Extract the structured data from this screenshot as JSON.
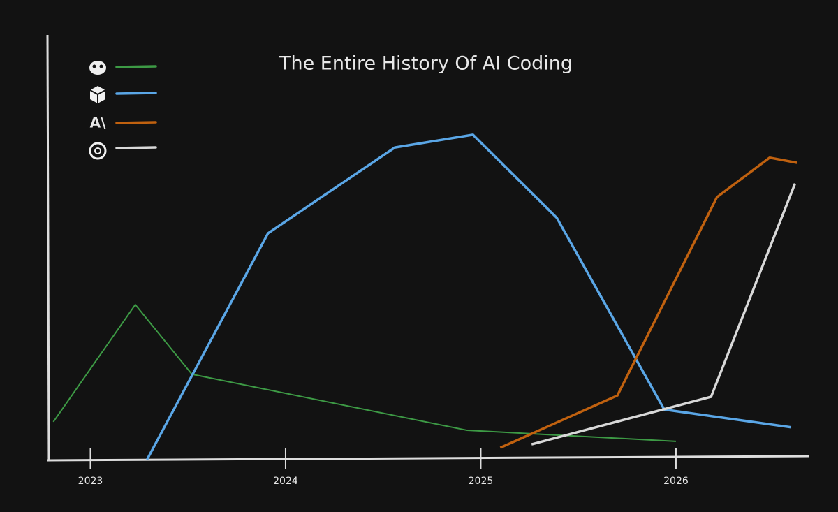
{
  "chart_data": {
    "type": "line",
    "title": "The Entire History Of AI Coding",
    "xlim": [
      2022.78,
      2026.68
    ],
    "xticks": [
      2023,
      2024,
      2025,
      2026
    ],
    "ylim": [
      0,
      100
    ],
    "series": [
      {
        "color": "#3d9a45",
        "x": [
          2022.81,
          2023.23,
          2023.52,
          2024.93,
          2026.0
        ],
        "values": [
          8.9,
          36.5,
          20.1,
          6.9,
          4.3
        ]
      },
      {
        "color": "#5aa6e6",
        "x": [
          2023.29,
          2023.91,
          2024.56,
          2024.96,
          2025.39,
          2025.94,
          2026.59
        ],
        "values": [
          0,
          53.3,
          73.5,
          76.5,
          56.9,
          11.8,
          7.6
        ]
      },
      {
        "color": "#c0610f",
        "x": [
          2025.1,
          2025.7,
          2026.21,
          2026.48,
          2026.62
        ],
        "values": [
          2.8,
          15.1,
          61.8,
          71.1,
          69.9
        ]
      },
      {
        "color": "#d8d8d8",
        "x": [
          2025.26,
          2026.18,
          2026.61
        ],
        "values": [
          3.6,
          14.8,
          65.0
        ]
      }
    ]
  }
}
